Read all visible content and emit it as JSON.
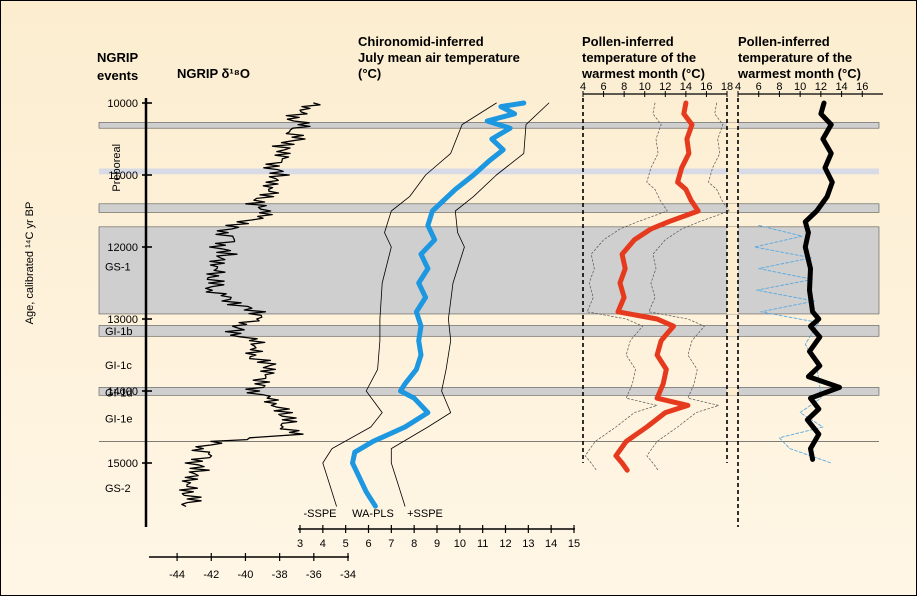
{
  "chart_data": [
    {
      "type": "line",
      "panel": "ngrip",
      "title": "NGRIP δ¹⁸O",
      "events_heading": [
        "NGRIP",
        "events"
      ],
      "ylabel": "Age, calibrated ¹⁴C yr BP",
      "ylim": [
        10000,
        15700
      ],
      "yticks": [
        10000,
        11000,
        12000,
        13000,
        14000,
        15000
      ],
      "xlim": [
        -45,
        -34
      ],
      "xticks": [
        -44,
        -42,
        -40,
        -38,
        -36,
        -34
      ],
      "series": [
        {
          "color": "#000000",
          "points": [
            [
              10000,
              -36.0
            ],
            [
              10100,
              -36.4
            ],
            [
              10200,
              -37.4
            ],
            [
              10300,
              -36.6
            ],
            [
              10400,
              -37.3
            ],
            [
              10500,
              -37.0
            ],
            [
              10600,
              -37.9
            ],
            [
              10700,
              -37.6
            ],
            [
              10800,
              -38.1
            ],
            [
              10900,
              -38.4
            ],
            [
              11000,
              -37.9
            ],
            [
              11100,
              -38.7
            ],
            [
              11200,
              -38.3
            ],
            [
              11300,
              -38.9
            ],
            [
              11400,
              -39.6
            ],
            [
              11500,
              -38.5
            ],
            [
              11600,
              -39.4
            ],
            [
              11700,
              -40.6
            ],
            [
              11800,
              -41.3
            ],
            [
              11900,
              -40.8
            ],
            [
              12000,
              -41.6
            ],
            [
              12100,
              -41.0
            ],
            [
              12200,
              -41.9
            ],
            [
              12300,
              -41.4
            ],
            [
              12400,
              -42.1
            ],
            [
              12500,
              -41.7
            ],
            [
              12600,
              -42.0
            ],
            [
              12700,
              -41.2
            ],
            [
              12800,
              -40.5
            ],
            [
              12900,
              -39.2
            ],
            [
              13000,
              -39.4
            ],
            [
              13100,
              -40.3
            ],
            [
              13200,
              -40.8
            ],
            [
              13300,
              -39.5
            ],
            [
              13400,
              -39.2
            ],
            [
              13500,
              -39.9
            ],
            [
              13600,
              -38.8
            ],
            [
              13700,
              -38.4
            ],
            [
              13800,
              -39.1
            ],
            [
              13900,
              -38.9
            ],
            [
              14000,
              -39.6
            ],
            [
              14100,
              -38.7
            ],
            [
              14200,
              -38.1
            ],
            [
              14300,
              -37.8
            ],
            [
              14400,
              -37.5
            ],
            [
              14500,
              -37.7
            ],
            [
              14600,
              -37.1
            ],
            [
              14700,
              -41.5
            ],
            [
              14800,
              -42.7
            ],
            [
              14900,
              -42.2
            ],
            [
              15000,
              -43.0
            ],
            [
              15100,
              -42.6
            ],
            [
              15200,
              -43.4
            ],
            [
              15300,
              -43.1
            ],
            [
              15400,
              -43.6
            ],
            [
              15500,
              -43.0
            ],
            [
              15600,
              -43.5
            ]
          ]
        }
      ],
      "event_labels": [
        {
          "text": "Preboreal",
          "age": 10900
        },
        {
          "text": "GS-1",
          "age": 12270
        },
        {
          "text": "GI-1b",
          "age": 13170
        },
        {
          "text": "GI-1c",
          "age": 13640
        },
        {
          "text": "GI-1d",
          "age": 14020
        },
        {
          "text": "GI-1e",
          "age": 14380
        },
        {
          "text": "GS-2",
          "age": 15350
        }
      ],
      "bands": [
        [
          10270,
          10350
        ],
        [
          10910,
          10990
        ],
        [
          11400,
          11520
        ],
        [
          11720,
          12930
        ],
        [
          13090,
          13240
        ],
        [
          13950,
          14060
        ]
      ],
      "lines": [
        14700
      ]
    },
    {
      "type": "line",
      "panel": "chironomid",
      "title": [
        "Chironomid-inferred",
        "July mean air temperature",
        "(°C)"
      ],
      "xlim": [
        3,
        15
      ],
      "xticks": [
        3,
        4,
        5,
        6,
        7,
        8,
        9,
        10,
        11,
        12,
        13,
        14,
        15
      ],
      "series": [
        {
          "name": "WA-PLS",
          "color": "#1d97e0",
          "points": [
            [
              10000,
              12.8
            ],
            [
              10050,
              11.8
            ],
            [
              10150,
              12.4
            ],
            [
              10250,
              11.2
            ],
            [
              10350,
              12.2
            ],
            [
              10500,
              11.4
            ],
            [
              10650,
              11.9
            ],
            [
              10800,
              11.3
            ],
            [
              11000,
              10.6
            ],
            [
              11200,
              9.8
            ],
            [
              11500,
              8.8
            ],
            [
              11700,
              8.6
            ],
            [
              11900,
              8.9
            ],
            [
              12100,
              8.3
            ],
            [
              12300,
              8.6
            ],
            [
              12500,
              8.2
            ],
            [
              12700,
              8.5
            ],
            [
              12900,
              8.1
            ],
            [
              13100,
              8.3
            ],
            [
              13300,
              8.2
            ],
            [
              13500,
              8.3
            ],
            [
              13700,
              8.1
            ],
            [
              13900,
              7.6
            ],
            [
              14000,
              7.4
            ],
            [
              14100,
              8.0
            ],
            [
              14300,
              8.6
            ],
            [
              14500,
              7.6
            ],
            [
              14700,
              6.2
            ],
            [
              14850,
              5.4
            ],
            [
              15000,
              5.3
            ],
            [
              15200,
              5.6
            ],
            [
              15400,
              5.9
            ],
            [
              15600,
              6.3
            ]
          ]
        },
        {
          "name": "-SSPE",
          "color": "#000000",
          "points": [
            [
              10000,
              11.6
            ],
            [
              10300,
              10.1
            ],
            [
              10700,
              9.6
            ],
            [
              11000,
              8.5
            ],
            [
              11300,
              7.8
            ],
            [
              11500,
              7.0
            ],
            [
              11800,
              6.7
            ],
            [
              12000,
              7.0
            ],
            [
              12500,
              6.6
            ],
            [
              13000,
              6.5
            ],
            [
              13300,
              6.5
            ],
            [
              13700,
              6.4
            ],
            [
              14000,
              5.9
            ],
            [
              14300,
              6.6
            ],
            [
              14500,
              6.1
            ],
            [
              14800,
              4.4
            ],
            [
              15000,
              4.0
            ],
            [
              15300,
              4.3
            ],
            [
              15600,
              4.6
            ]
          ]
        },
        {
          "name": "+SSPE",
          "color": "#000000",
          "points": [
            [
              10000,
              13.9
            ],
            [
              10300,
              12.9
            ],
            [
              10700,
              12.8
            ],
            [
              11000,
              11.6
            ],
            [
              11300,
              10.6
            ],
            [
              11500,
              9.8
            ],
            [
              11800,
              9.9
            ],
            [
              12000,
              10.2
            ],
            [
              12500,
              9.7
            ],
            [
              13000,
              9.5
            ],
            [
              13300,
              9.6
            ],
            [
              13700,
              9.4
            ],
            [
              14000,
              9.2
            ],
            [
              14300,
              9.6
            ],
            [
              14500,
              8.6
            ],
            [
              14800,
              7.0
            ],
            [
              15000,
              7.0
            ],
            [
              15300,
              7.3
            ],
            [
              15600,
              7.6
            ]
          ]
        }
      ],
      "series_labels": [
        "-SSPE",
        "WA-PLS",
        "+SSPE"
      ]
    },
    {
      "type": "line",
      "panel": "pollen-1",
      "title": [
        "Pollen-inferred",
        "temperature of the",
        "warmest month (°C)"
      ],
      "xlim": [
        4,
        18
      ],
      "xticks": [
        4,
        6,
        8,
        10,
        12,
        14,
        16,
        18
      ],
      "series": [
        {
          "color": "#e63a1e",
          "points": [
            [
              10000,
              14.0
            ],
            [
              10150,
              13.8
            ],
            [
              10300,
              14.6
            ],
            [
              10500,
              14.1
            ],
            [
              10700,
              14.3
            ],
            [
              10900,
              13.6
            ],
            [
              11100,
              13.2
            ],
            [
              11200,
              14.0
            ],
            [
              11350,
              14.5
            ],
            [
              11500,
              15.2
            ],
            [
              11650,
              12.3
            ],
            [
              11750,
              10.6
            ],
            [
              11900,
              9.0
            ],
            [
              12100,
              7.8
            ],
            [
              12300,
              8.1
            ],
            [
              12500,
              7.6
            ],
            [
              12700,
              8.0
            ],
            [
              12900,
              7.4
            ],
            [
              13000,
              11.2
            ],
            [
              13100,
              12.8
            ],
            [
              13200,
              12.2
            ],
            [
              13300,
              11.6
            ],
            [
              13500,
              11.2
            ],
            [
              13700,
              12.1
            ],
            [
              13900,
              11.8
            ],
            [
              14100,
              11.2
            ],
            [
              14200,
              14.2
            ],
            [
              14300,
              12.0
            ],
            [
              14500,
              10.2
            ],
            [
              14700,
              8.2
            ],
            [
              14900,
              7.2
            ],
            [
              15000,
              7.8
            ],
            [
              15100,
              8.3
            ]
          ]
        }
      ]
    },
    {
      "type": "line",
      "panel": "pollen-2",
      "title": [
        "Pollen-inferred",
        "temperature of the",
        "warmest month (°C)"
      ],
      "xlim": [
        4,
        18
      ],
      "xticks": [
        4,
        6,
        8,
        10,
        12,
        14,
        16
      ],
      "series": [
        {
          "color": "#000000",
          "points": [
            [
              10000,
              12.3
            ],
            [
              10150,
              12.0
            ],
            [
              10300,
              13.0
            ],
            [
              10500,
              12.2
            ],
            [
              10700,
              13.0
            ],
            [
              10900,
              12.4
            ],
            [
              11100,
              13.1
            ],
            [
              11300,
              12.6
            ],
            [
              11500,
              11.6
            ],
            [
              11650,
              10.5
            ],
            [
              11800,
              10.8
            ],
            [
              12000,
              10.5
            ],
            [
              12300,
              11.0
            ],
            [
              12600,
              10.9
            ],
            [
              12900,
              11.2
            ],
            [
              13000,
              11.8
            ],
            [
              13100,
              11.0
            ],
            [
              13250,
              11.9
            ],
            [
              13450,
              10.9
            ],
            [
              13650,
              11.9
            ],
            [
              13800,
              10.8
            ],
            [
              13950,
              13.8
            ],
            [
              14100,
              11.0
            ],
            [
              14250,
              11.8
            ],
            [
              14400,
              10.7
            ],
            [
              14600,
              11.8
            ],
            [
              14800,
              11.0
            ],
            [
              14950,
              11.2
            ]
          ]
        },
        {
          "color": "#59a9e1",
          "dotted": true,
          "points": [
            [
              11700,
              6.0
            ],
            [
              11850,
              10.2
            ],
            [
              12000,
              5.6
            ],
            [
              12150,
              11.1
            ],
            [
              12300,
              6.0
            ],
            [
              12450,
              11.2
            ],
            [
              12600,
              5.8
            ],
            [
              12750,
              11.4
            ],
            [
              12900,
              6.2
            ],
            [
              13050,
              11.8
            ],
            [
              13350,
              10.5
            ],
            [
              13650,
              11.6
            ],
            [
              13950,
              11.9
            ],
            [
              14100,
              12.0
            ],
            [
              14300,
              10.0
            ],
            [
              14500,
              12.2
            ],
            [
              14650,
              8.0
            ],
            [
              14800,
              9.0
            ],
            [
              15000,
              13.0
            ]
          ]
        }
      ]
    }
  ]
}
